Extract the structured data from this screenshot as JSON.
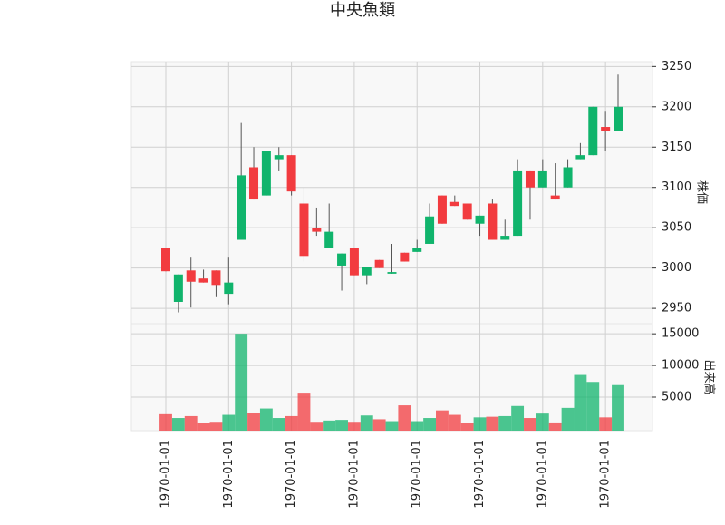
{
  "chart_data": {
    "type": "candlestick",
    "title": "中央魚類",
    "categories": [
      "1970-01-01",
      null,
      null,
      null,
      null,
      "1970-01-01",
      null,
      null,
      null,
      null,
      "1970-01-01",
      null,
      null,
      null,
      null,
      "1970-01-01",
      null,
      null,
      null,
      null,
      "1970-01-01",
      null,
      null,
      null,
      null,
      "1970-01-01",
      null,
      null,
      null,
      null,
      "1970-01-01",
      null,
      null,
      null,
      null,
      "1970-01-01",
      null
    ],
    "open": [
      3025,
      2958,
      2997,
      2987,
      2997,
      2968,
      3035,
      3125,
      3090,
      3135,
      3140,
      3080,
      3050,
      3025,
      3003,
      3025,
      2991,
      3010,
      2993,
      3019,
      3020,
      3030,
      3090,
      3082,
      3080,
      3055,
      3080,
      3035,
      3040,
      3120,
      3100,
      3090,
      3100,
      3135,
      3140,
      3175,
      3170
    ],
    "high": [
      3025,
      2992,
      3014,
      2998,
      2997,
      3014,
      3180,
      3150,
      3145,
      3150,
      3140,
      3100,
      3075,
      3080,
      3018,
      3025,
      3001,
      3010,
      3030,
      3019,
      3035,
      3080,
      3090,
      3090,
      3080,
      3065,
      3085,
      3060,
      3135,
      3120,
      3135,
      3130,
      3135,
      3155,
      3200,
      3195,
      3240
    ],
    "low": [
      2996,
      2945,
      2951,
      2982,
      2965,
      2955,
      3035,
      3085,
      3090,
      3120,
      3090,
      3008,
      3040,
      3025,
      2972,
      2991,
      2980,
      3000,
      2993,
      3008,
      3020,
      3030,
      3055,
      3077,
      3060,
      3040,
      3035,
      3035,
      3040,
      3060,
      3100,
      3085,
      3100,
      3135,
      3140,
      3145,
      3170
    ],
    "close": [
      2996,
      2992,
      2983,
      2982,
      2979,
      2982,
      3115,
      3085,
      3145,
      3140,
      3095,
      3015,
      3045,
      3045,
      3018,
      2991,
      3001,
      3000,
      2995,
      3008,
      3025,
      3064,
      3055,
      3077,
      3060,
      3065,
      3035,
      3040,
      3120,
      3100,
      3120,
      3085,
      3125,
      3140,
      3200,
      3170,
      3200
    ],
    "volume": [
      2300,
      1700,
      2000,
      900,
      1100,
      2200,
      15000,
      2500,
      3200,
      1700,
      2000,
      5700,
      1100,
      1300,
      1400,
      1100,
      2100,
      1500,
      1200,
      3700,
      1200,
      1700,
      2900,
      2200,
      900,
      1800,
      1900,
      2000,
      3600,
      1700,
      2400,
      1000,
      3300,
      8500,
      7400,
      1800,
      6900
    ],
    "up_color": "#10b46c",
    "down_color": "#f23b3f",
    "ylabel": "株価",
    "y2label": "出来高",
    "ylim": [
      2931,
      3256
    ],
    "yticks": [
      2950,
      3000,
      3050,
      3100,
      3150,
      3200,
      3250
    ],
    "y2lim": [
      -300,
      16600
    ],
    "y2ticks": [
      5000,
      10000,
      15000
    ],
    "grid": true
  }
}
